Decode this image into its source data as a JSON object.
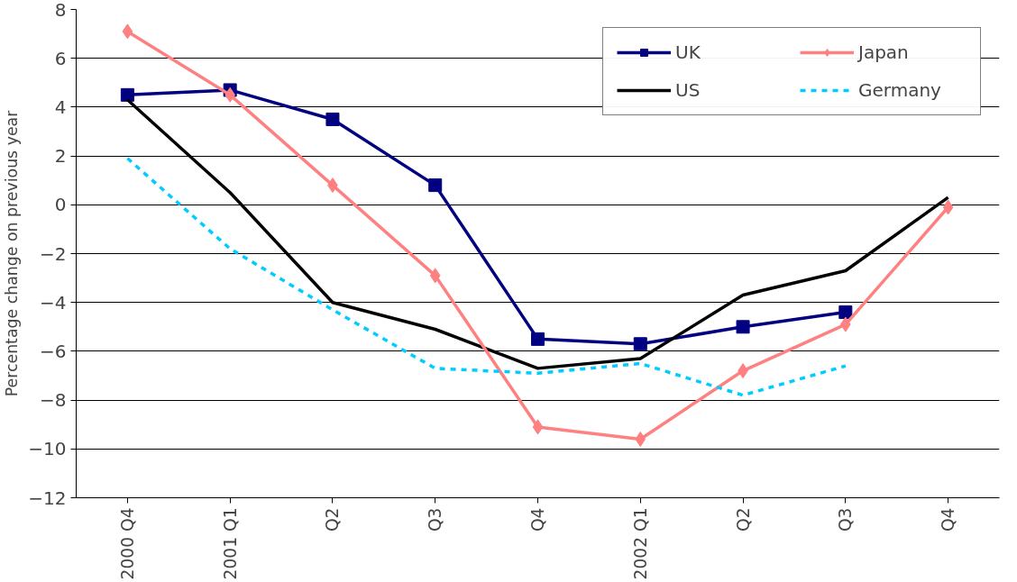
{
  "chart_data": {
    "type": "line",
    "ylabel": "Percentage change on previous year",
    "categories": [
      "2000 Q4",
      "2001 Q1",
      "Q2",
      "Q3",
      "Q4",
      "2002 Q1",
      "Q2",
      "Q3",
      "Q4"
    ],
    "series": [
      {
        "name": "UK",
        "color": "#000080",
        "marker": "square",
        "line_style": "solid",
        "values": [
          4.5,
          4.7,
          3.5,
          0.8,
          -5.5,
          -5.7,
          -5.0,
          -4.4,
          null
        ]
      },
      {
        "name": "US",
        "color": "#000000",
        "marker": "none",
        "line_style": "solid",
        "values": [
          4.3,
          0.5,
          -4.0,
          -5.1,
          -6.7,
          -6.3,
          -3.7,
          -2.7,
          0.3
        ]
      },
      {
        "name": "Japan",
        "color": "#ff8080",
        "marker": "diamond",
        "line_style": "solid",
        "values": [
          7.1,
          4.5,
          0.8,
          -2.9,
          -9.1,
          -9.6,
          -6.8,
          -4.9,
          -0.1
        ]
      },
      {
        "name": "Germany",
        "color": "#00ccff",
        "marker": "none",
        "line_style": "dashed",
        "values": [
          1.9,
          -1.8,
          -4.3,
          -6.7,
          -6.9,
          -6.5,
          -7.8,
          -6.6,
          null
        ]
      }
    ],
    "ylim": [
      -12,
      8
    ],
    "yticks": [
      -12,
      -10,
      -8,
      -6,
      -4,
      -2,
      0,
      2,
      4,
      6,
      8
    ],
    "grid": "y",
    "legend": "top right"
  }
}
